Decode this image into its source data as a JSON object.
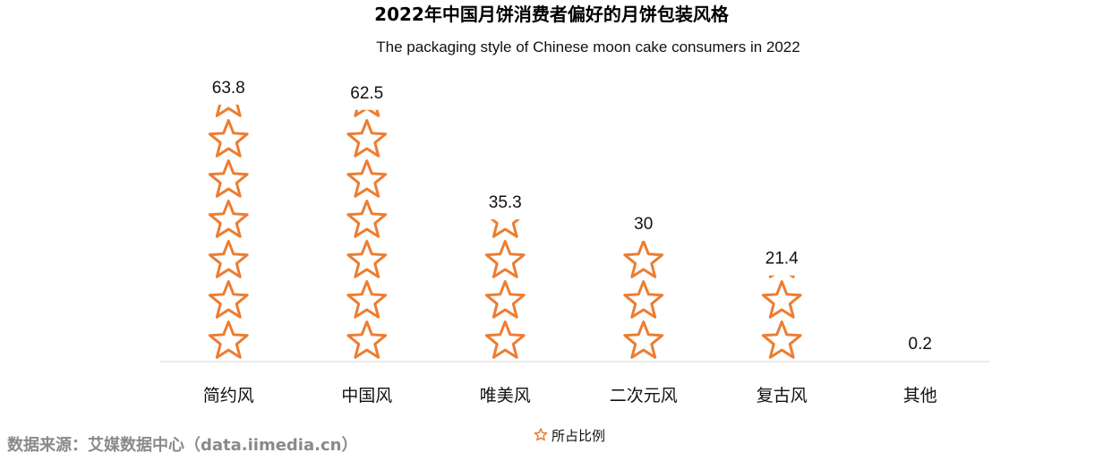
{
  "title": "2022年中国月饼消费者偏好的月饼包装风格",
  "subtitle": "The packaging style of Chinese moon cake consumers in 2022",
  "source": "数据来源：艾媒数据中心（data.iimedia.cn）",
  "legend": {
    "label": "所占比例",
    "icon": "star-outline-icon",
    "position": "bottom"
  },
  "colors": {
    "star": "#ED7D31",
    "axis": "#D9D9D9",
    "source": "#8A8A8A"
  },
  "chart_data": {
    "type": "bar",
    "style": "pictorial-stacked-stars",
    "title": "2022年中国月饼消费者偏好的月饼包装风格",
    "subtitle": "The packaging style of Chinese moon cake consumers in 2022",
    "categories": [
      "简约风",
      "中国风",
      "唯美风",
      "二次元风",
      "复古风",
      "其他"
    ],
    "series": [
      {
        "name": "所占比例",
        "values": [
          63.8,
          62.5,
          35.3,
          30,
          21.4,
          0.2
        ]
      }
    ],
    "data_labels": [
      "63.8",
      "62.5",
      "35.3",
      "30",
      "21.4",
      "0.2"
    ],
    "ylim": [
      0,
      70
    ],
    "grid": false,
    "legend": "bottom"
  }
}
